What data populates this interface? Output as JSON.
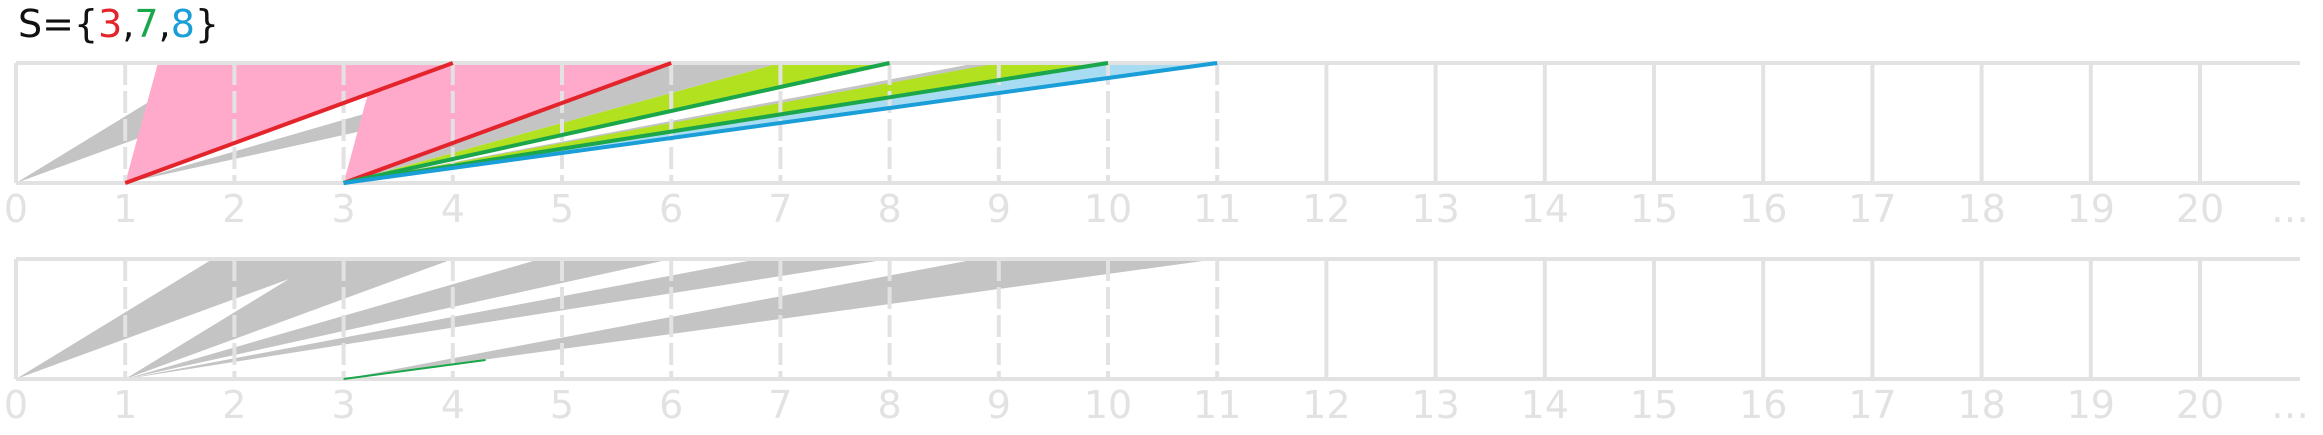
{
  "title": {
    "prefix": "S={",
    "elements": [
      {
        "text": "3",
        "color": "#e3242b"
      },
      {
        "text": ",",
        "color": "#111111"
      },
      {
        "text": "7",
        "color": "#1aa64b"
      },
      {
        "text": ",",
        "color": "#111111"
      },
      {
        "text": "8",
        "color": "#1a9ed8"
      }
    ],
    "suffix": "}"
  },
  "axis": {
    "tick_labels": [
      "0",
      "1",
      "2",
      "3",
      "4",
      "5",
      "6",
      "7",
      "8",
      "9",
      "10",
      "11",
      "12",
      "13",
      "14",
      "15",
      "16",
      "17",
      "18",
      "19",
      "20",
      "…"
    ]
  },
  "colors": {
    "grid": "#e2e2e2",
    "gray_fill": "#c4c4c4",
    "pink_fill": "#ffaacb",
    "lime_fill": "#b2e21f",
    "lightblue_fill": "#a8dcf2",
    "red": "#e3242b",
    "green": "#1aa64b",
    "blue": "#1a9ed8"
  },
  "top_panel": {
    "gray_fans": [
      {
        "from": 0,
        "to": 3
      },
      {
        "from": 1,
        "to": 4
      },
      {
        "from": 1,
        "to": 6
      },
      {
        "from": 3,
        "to": 7
      },
      {
        "from": 3,
        "to": 10
      },
      {
        "from": 3,
        "to": 11
      }
    ],
    "colored_fans": [
      {
        "name": "red",
        "from": 1,
        "to": 4,
        "fill": "pink_fill",
        "stroke": "red"
      },
      {
        "name": "red",
        "from": 3,
        "to": 6,
        "fill": "pink_fill",
        "stroke": "red"
      },
      {
        "name": "green",
        "from": 3,
        "to": 8,
        "fill": "lime_fill",
        "stroke": "green"
      },
      {
        "name": "green",
        "from": 3,
        "to": 10,
        "fill": "lime_fill",
        "stroke": "green"
      },
      {
        "name": "blue",
        "from": 3,
        "to": 11,
        "fill": "lightblue_fill",
        "stroke": "blue"
      }
    ]
  },
  "bottom_panel": {
    "gray_fans": [
      {
        "from": 0,
        "to": 3
      },
      {
        "from": 1,
        "to": 4
      },
      {
        "from": 1,
        "to": 6
      },
      {
        "from": 1,
        "to": 8
      },
      {
        "from": 3,
        "to": 10
      },
      {
        "from": 3,
        "to": 11
      }
    ]
  }
}
